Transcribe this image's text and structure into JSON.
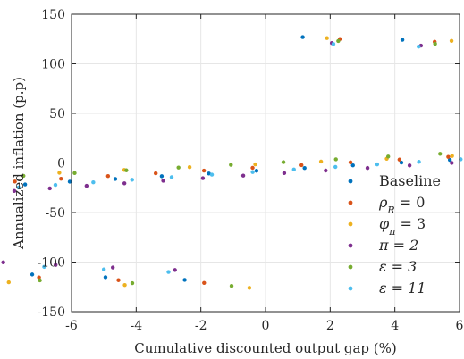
{
  "chart_data": {
    "type": "scatter",
    "xlabel": "Cumulative discounted output gap (%)",
    "ylabel": "Annualized inflation (p.p)",
    "xlim": [
      -6,
      6
    ],
    "ylim": [
      -150,
      150
    ],
    "xticks": [
      -6,
      -4,
      -2,
      0,
      2,
      4,
      6
    ],
    "xtick_labels": [
      "-6",
      "-4",
      "-2",
      "0",
      "2",
      "4",
      "6"
    ],
    "yticks": [
      -150,
      -100,
      -50,
      0,
      50,
      100,
      150
    ],
    "ytick_labels": [
      "-150",
      "-100",
      "-50",
      "0",
      "50",
      "100",
      "150"
    ],
    "grid": true,
    "legend_position": "bottom-right",
    "curve_shape": "cubic",
    "series": [
      {
        "name": "Baseline",
        "label_parts": [
          "Baseline"
        ],
        "color": "#0072BD",
        "x_extreme": 4.5,
        "y_extreme": 40,
        "y_start": 127,
        "x_start": 1.15,
        "y_end": -118,
        "x_end": -2.5,
        "n_points": 90
      },
      {
        "name": "ρR = 0",
        "label_parts": [
          "ρ",
          "R",
          " = 0"
        ],
        "color": "#D95319",
        "x_extreme": 5.2,
        "y_extreme": 42,
        "y_start": 125,
        "x_start": 2.3,
        "y_end": -121,
        "x_end": -1.9,
        "n_points": 90
      },
      {
        "name": "φπ = 3",
        "label_parts": [
          "φ",
          "π",
          " = 3"
        ],
        "color": "#EDB120",
        "x_extreme": 4.9,
        "y_extreme": 38,
        "y_start": 126,
        "x_start": 1.9,
        "y_end": -126,
        "x_end": -0.5,
        "n_points": 90
      },
      {
        "name": "π = 2",
        "label_parts": [
          "π = 2",
          "",
          ""
        ],
        "color": "#7E2F8E",
        "x_extreme": 4.7,
        "y_extreme": 40,
        "y_start": 121,
        "x_start": 2.05,
        "y_end": -108,
        "x_end": -2.8,
        "n_points": 90
      },
      {
        "name": "ε = 3",
        "label_parts": [
          "ε = 3",
          "",
          ""
        ],
        "color": "#77AC30",
        "x_extreme": 4.8,
        "y_extreme": 40,
        "y_start": 123,
        "x_start": 2.25,
        "y_end": -124,
        "x_end": -1.05,
        "n_points": 90
      },
      {
        "name": "ε = 11",
        "label_parts": [
          "ε = 11",
          "",
          ""
        ],
        "color": "#4DBEEE",
        "x_extreme": 4.6,
        "y_extreme": 40,
        "y_start": 120,
        "x_start": 2.1,
        "y_end": -110,
        "x_end": -3.0,
        "n_points": 90
      }
    ]
  }
}
